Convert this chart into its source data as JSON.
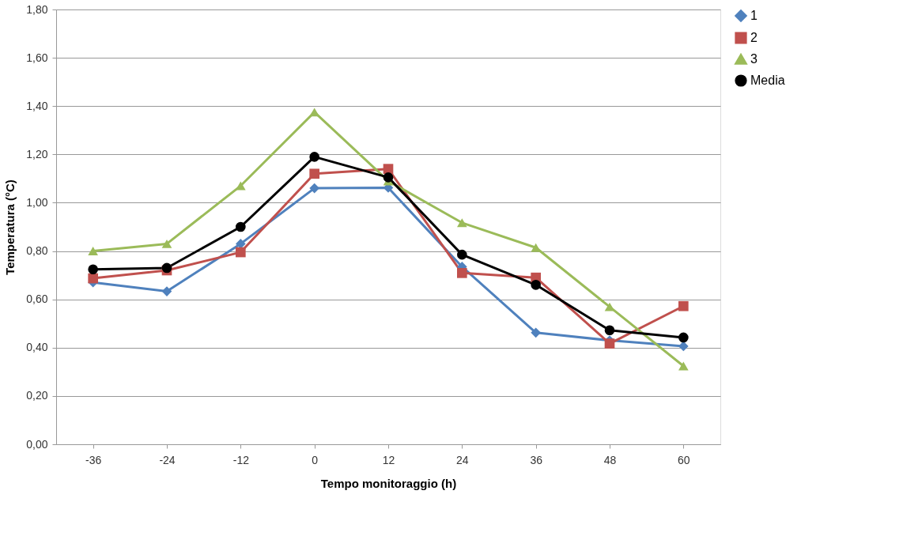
{
  "chart_data": {
    "type": "line",
    "xlabel": "Tempo monitoraggio (h)",
    "ylabel": "Temperatura (°C)",
    "categories": [
      "-36",
      "-24",
      "-12",
      "0",
      "12",
      "24",
      "36",
      "48",
      "60"
    ],
    "series": [
      {
        "name": "1",
        "color": "#4f81bd",
        "marker": "diamond",
        "values": [
          0.67,
          0.633,
          0.83,
          1.06,
          1.062,
          0.735,
          0.462,
          0.43,
          0.406
        ]
      },
      {
        "name": "2",
        "color": "#c0504d",
        "marker": "square",
        "values": [
          0.687,
          0.72,
          0.795,
          1.12,
          1.14,
          0.709,
          0.69,
          0.417,
          0.572
        ]
      },
      {
        "name": "3",
        "color": "#9bbb59",
        "marker": "triangle",
        "values": [
          0.8,
          0.83,
          1.07,
          1.375,
          1.09,
          0.917,
          0.814,
          0.569,
          0.324
        ]
      },
      {
        "name": "Media",
        "color": "#000000",
        "marker": "circle",
        "values": [
          0.724,
          0.73,
          0.9,
          1.19,
          1.105,
          0.785,
          0.66,
          0.472,
          0.442
        ]
      }
    ],
    "ylim": [
      0,
      1.8
    ],
    "yticks": [
      {
        "value": 0,
        "label": "0,00"
      },
      {
        "value": 0.2,
        "label": "0,20"
      },
      {
        "value": 0.4,
        "label": "0,40"
      },
      {
        "value": 0.6,
        "label": "0,60"
      },
      {
        "value": 0.8,
        "label": "0,80"
      },
      {
        "value": 1.0,
        "label": "1,00"
      },
      {
        "value": 1.2,
        "label": "1,20"
      },
      {
        "value": 1.4,
        "label": "1,40"
      },
      {
        "value": 1.6,
        "label": "1,60"
      },
      {
        "value": 1.8,
        "label": "1,80"
      }
    ],
    "grid": "y",
    "legend": "right",
    "line_style": "solid"
  }
}
